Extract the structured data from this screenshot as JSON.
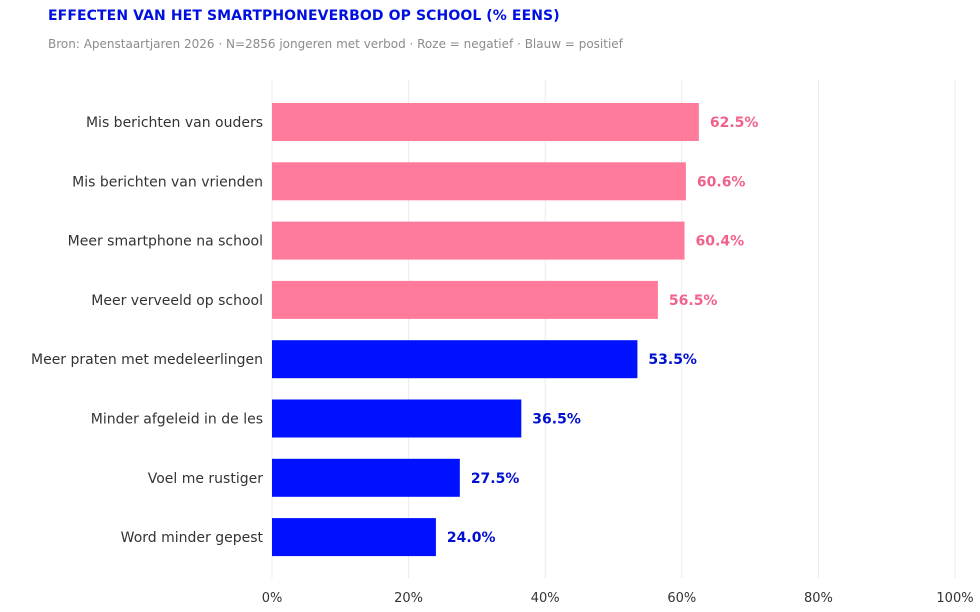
{
  "chart_data": {
    "type": "bar",
    "orientation": "horizontal",
    "title": "EFFECTEN VAN HET SMARTPHONEVERBOD OP SCHOOL (% EENS)",
    "subtitle": "Bron: Apenstaartjaren 2026 · N=2856 jongeren met verbod · Roze = negatief · Blauw = positief",
    "categories": [
      "Mis berichten van ouders",
      "Mis berichten van vrienden",
      "Meer smartphone na school",
      "Meer verveeld op school",
      "Meer praten met medeleerlingen",
      "Minder afgeleid in de les",
      "Voel me rustiger",
      "Word minder gepest"
    ],
    "values": [
      62.5,
      60.6,
      60.4,
      56.5,
      53.5,
      36.5,
      27.5,
      24.0
    ],
    "value_labels": [
      "62.5%",
      "60.6%",
      "60.4%",
      "56.5%",
      "53.5%",
      "36.5%",
      "27.5%",
      "24.0%"
    ],
    "sentiment": [
      "negatief",
      "negatief",
      "negatief",
      "negatief",
      "positief",
      "positief",
      "positief",
      "positief"
    ],
    "colors": {
      "negatief_bar": "#ff7b9c",
      "negatief_label": "#f0628a",
      "positief_bar": "#0011ff",
      "positief_label": "#0010d0",
      "title": "#0010e0",
      "grid": "#ebebeb"
    },
    "xlim": [
      0,
      100
    ],
    "xticks": [
      0,
      20,
      40,
      60,
      80,
      100
    ],
    "xtick_labels": [
      "0%",
      "20%",
      "40%",
      "60%",
      "80%",
      "100%"
    ],
    "grid": true
  }
}
